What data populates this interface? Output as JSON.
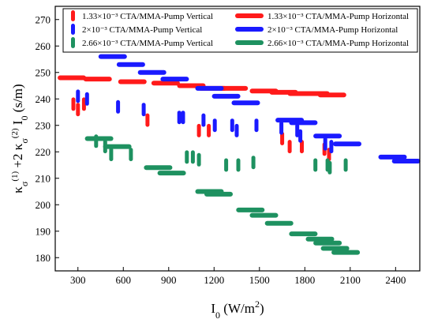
{
  "chart_data": {
    "type": "scatter",
    "title": "",
    "xlabel": "I₀ (W/m²)",
    "ylabel": "κσ(1) +2 κσ(2) I₀ (s/m)",
    "xlabel_parts": {
      "main": "I",
      "sub": "0",
      "unit_start": " (W/m",
      "sup": "2",
      "unit_end": ")"
    },
    "ylabel_parts": {
      "k1": "κ",
      "s1": "σ",
      "p1": "(1)",
      "mid": " +2 ",
      "k2": "κ",
      "s2": "σ",
      "p2": "(2)",
      "i": " I",
      "isub": "0",
      "unit": " (s/m)"
    },
    "xlim": [
      150,
      2560
    ],
    "ylim": [
      175,
      275
    ],
    "xticks": [
      300,
      600,
      900,
      1200,
      1500,
      1800,
      2100,
      2400
    ],
    "yticks": [
      180,
      190,
      200,
      210,
      220,
      230,
      240,
      250,
      260,
      270
    ],
    "legend_position": "top",
    "grid": false,
    "series": [
      {
        "name": "1.33×10⁻³ CTA/MMA-Pump Vertical",
        "marker": "vertical",
        "color": "#ff1a1a",
        "points": [
          [
            270,
            238
          ],
          [
            300,
            236
          ],
          [
            340,
            238
          ],
          [
            760,
            232
          ],
          [
            1100,
            228
          ],
          [
            1165,
            228
          ],
          [
            1650,
            225
          ],
          [
            1700,
            222
          ],
          [
            1780,
            222
          ],
          [
            1930,
            221
          ],
          [
            1960,
            219
          ]
        ]
      },
      {
        "name": "2×10⁻³ CTA/MMA-Pump Vertical",
        "marker": "vertical",
        "color": "#1a1aff",
        "points": [
          [
            300,
            241
          ],
          [
            360,
            240
          ],
          [
            565,
            237
          ],
          [
            735,
            236
          ],
          [
            970,
            233
          ],
          [
            995,
            233
          ],
          [
            1130,
            232
          ],
          [
            1205,
            230
          ],
          [
            1320,
            230
          ],
          [
            1350,
            228
          ],
          [
            1480,
            230
          ],
          [
            1645,
            229
          ],
          [
            1750,
            228
          ],
          [
            1770,
            226
          ],
          [
            1935,
            223
          ],
          [
            1975,
            222
          ]
        ]
      },
      {
        "name": "2.66×10⁻³ CTA/MMA-Pump Vertical",
        "marker": "vertical",
        "color": "#1e9160",
        "points": [
          [
            420,
            224
          ],
          [
            480,
            222
          ],
          [
            520,
            219
          ],
          [
            650,
            219
          ],
          [
            1020,
            218
          ],
          [
            1060,
            218
          ],
          [
            1100,
            217
          ],
          [
            1280,
            215
          ],
          [
            1360,
            215
          ],
          [
            1460,
            216
          ],
          [
            1870,
            215
          ],
          [
            1950,
            215
          ],
          [
            1965,
            214
          ],
          [
            2070,
            215
          ]
        ]
      },
      {
        "name": "1.33×10⁻³ CTA/MMA-Pump Horizontal",
        "marker": "horizontal",
        "color": "#ff1a1a",
        "points": [
          [
            260,
            248
          ],
          [
            430,
            247.5
          ],
          [
            660,
            246.5
          ],
          [
            880,
            246
          ],
          [
            1050,
            245
          ],
          [
            1190,
            244
          ],
          [
            1330,
            244
          ],
          [
            1530,
            243
          ],
          [
            1660,
            242.5
          ],
          [
            1780,
            242
          ],
          [
            1870,
            242
          ],
          [
            1980,
            241.5
          ]
        ]
      },
      {
        "name": "2×10⁻³ CTA/MMA-Pump Horizontal",
        "marker": "horizontal",
        "color": "#1a1aff",
        "points": [
          [
            530,
            256
          ],
          [
            650,
            253
          ],
          [
            790,
            250
          ],
          [
            940,
            247.5
          ],
          [
            1170,
            244
          ],
          [
            1280,
            241
          ],
          [
            1410,
            238.5
          ],
          [
            1700,
            232
          ],
          [
            1790,
            231
          ],
          [
            1950,
            226
          ],
          [
            2080,
            223
          ],
          [
            2380,
            218
          ],
          [
            2470,
            216.5
          ]
        ]
      },
      {
        "name": "2.66×10⁻³ CTA/MMA-Pump Horizontal",
        "marker": "horizontal",
        "color": "#1e9160",
        "points": [
          [
            440,
            225
          ],
          [
            560,
            222
          ],
          [
            830,
            214
          ],
          [
            920,
            212
          ],
          [
            1170,
            205
          ],
          [
            1230,
            204
          ],
          [
            1440,
            198
          ],
          [
            1530,
            196
          ],
          [
            1630,
            193
          ],
          [
            1790,
            189
          ],
          [
            1900,
            187
          ],
          [
            1950,
            185.5
          ],
          [
            2000,
            183.5
          ],
          [
            2070,
            182
          ]
        ]
      }
    ]
  }
}
